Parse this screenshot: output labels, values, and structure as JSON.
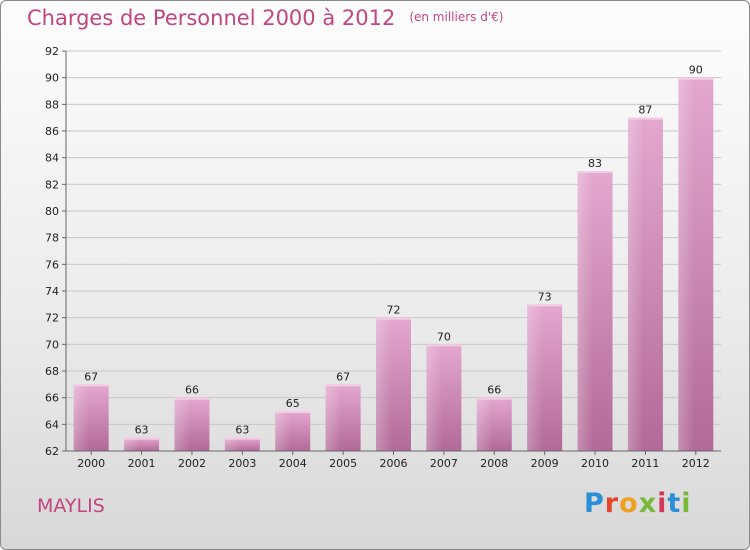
{
  "header": {
    "title": "Charges de Personnel 2000 à 2012",
    "unit": "(en milliers d'€)"
  },
  "place": "MAYLIS",
  "logo": {
    "letters": [
      "P",
      "r",
      "o",
      "x",
      "i",
      "t",
      "i"
    ],
    "colors": [
      "#2a8fd6",
      "#e8452c",
      "#f0a020",
      "#7ab83a",
      "#d6365c",
      "#2a8fd6",
      "#7ab83a"
    ]
  },
  "chart_data": {
    "type": "bar",
    "categories": [
      "2000",
      "2001",
      "2002",
      "2003",
      "2004",
      "2005",
      "2006",
      "2007",
      "2008",
      "2009",
      "2010",
      "2011",
      "2012"
    ],
    "values": [
      67,
      63,
      66,
      63,
      65,
      67,
      72,
      70,
      66,
      73,
      83,
      87,
      90
    ],
    "ylim": [
      62,
      92
    ],
    "yticks": [
      62,
      64,
      66,
      68,
      70,
      72,
      74,
      76,
      78,
      80,
      82,
      84,
      86,
      88,
      90,
      92
    ],
    "grid": true,
    "bar_color": "#d88fbc"
  }
}
